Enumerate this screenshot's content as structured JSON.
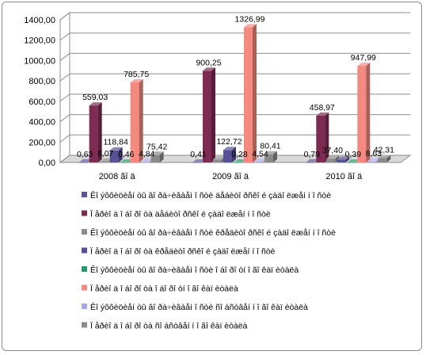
{
  "chart_data": {
    "type": "bar",
    "title": "",
    "xlabel": "",
    "ylabel": "",
    "ylim": [
      0,
      1400
    ],
    "yticks": [
      "0,00",
      "200,00",
      "400,00",
      "600,00",
      "800,00",
      "1000,00",
      "1200,00",
      "1400,00"
    ],
    "grid": true,
    "legend_position": "bottom",
    "categories": [
      "2008 ãî ä",
      "2009 ãî ä",
      "2010 ãî ä"
    ],
    "series": [
      {
        "name": "Êî ýôôèöèåí òû âî ðà÷èâàåì î ñòè äåáèòî ðñêî é çàäî ëæåí í î ñòè",
        "color": "#5b5597",
        "values": [
          0.63,
          0.41,
          0.79
        ],
        "labels": [
          "0,63",
          "0,41",
          "0,79"
        ]
      },
      {
        "name": "Ï åðèî ä î áî ðî òà äåáèòî ðñêî é çàäî ëæåí í î ñòè",
        "color": "#7d2b52",
        "values": [
          559.03,
          900.25,
          458.97
        ],
        "labels": [
          "559,03",
          "900,25",
          "458,97"
        ]
      },
      {
        "name": "Êî ýôôèöèåí òû âî ðà÷èâàåì î ñòè êðåäèòî ðñêî é çàäî ëæåí í î ñòè",
        "color": "#8c8c8c",
        "values": [
          8.07,
          28.0,
          37.4
        ],
        "labels": [
          "8,07",
          "",
          "37,40"
        ]
      },
      {
        "name": "Ï åðèî ä î áî ðî òà êðåäèòî ðñêî é çàäî ëæåí í î ñòè",
        "color": "#575297",
        "values": [
          118.84,
          122.72,
          28.0
        ],
        "labels": [
          "118,84",
          "122,72",
          ""
        ]
      },
      {
        "name": "Êî ýôôèöèåí òû âî ðà÷èâàåì î ñòè î áî ðî òí î ãî  êàï èòàëà",
        "color": "#2a9a6c",
        "values": [
          0.46,
          0.28,
          0.39
        ],
        "labels": [
          "0,46",
          "0,28",
          "0,39"
        ]
      },
      {
        "name": "Ï åðèî ä î áî ðî òà î áî ðî òí î ãî  êàï èòàëà",
        "color": "#f3897f",
        "values": [
          785.75,
          1326.99,
          947.99
        ],
        "labels": [
          "785,75",
          "1326,99",
          "947,99"
        ]
      },
      {
        "name": "Êî ýôôèöèåí òû âî ðà÷èâàåì î ñòè ñî áñòâåí í î ãî  êàï èòàëà",
        "color": "#a8a8e8",
        "values": [
          4.84,
          4.54,
          8.63
        ],
        "labels": [
          "4,84",
          "4,54",
          "8,63"
        ]
      },
      {
        "name": "Ï åðèî ä î áî ðî òà ñî áñòâåí í î ãî  êàï èòàëà",
        "color": "#8a8a8a",
        "values": [
          75.42,
          80.41,
          42.31
        ],
        "labels": [
          "75,42",
          "80,41",
          "42,31"
        ]
      }
    ]
  }
}
